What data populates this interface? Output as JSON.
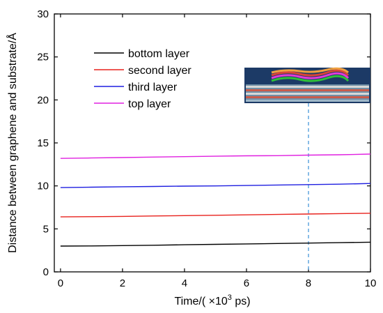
{
  "chart_data": {
    "type": "line",
    "xlabel": {
      "prefix": "Time/( ×10",
      "sup": "3",
      "suffix": " ps)"
    },
    "ylabel": "Distance between graphene and substrate/Å",
    "xlim": [
      -0.2,
      10
    ],
    "ylim": [
      0,
      30
    ],
    "xticks": [
      0,
      2,
      4,
      6,
      8,
      10
    ],
    "yticks": [
      0,
      5,
      10,
      15,
      20,
      25,
      30
    ],
    "legend_position": "top-left",
    "grid": false,
    "series": [
      {
        "name": "bottom layer",
        "color": "#000000",
        "x": [
          0,
          1,
          2,
          3,
          4,
          5,
          6,
          7,
          8,
          9,
          10
        ],
        "y": [
          3.0,
          3.02,
          3.06,
          3.1,
          3.15,
          3.2,
          3.25,
          3.3,
          3.35,
          3.4,
          3.45
        ]
      },
      {
        "name": "second layer",
        "color": "#e8211c",
        "x": [
          0,
          1,
          2,
          3,
          4,
          5,
          6,
          7,
          8,
          9,
          10
        ],
        "y": [
          6.4,
          6.42,
          6.45,
          6.5,
          6.54,
          6.58,
          6.63,
          6.68,
          6.73,
          6.78,
          6.82
        ]
      },
      {
        "name": "third layer",
        "color": "#1f1fe0",
        "x": [
          0,
          1,
          2,
          3,
          4,
          5,
          6,
          7,
          8,
          9,
          10
        ],
        "y": [
          9.8,
          9.85,
          9.9,
          9.93,
          9.97,
          10.0,
          10.05,
          10.1,
          10.15,
          10.2,
          10.28
        ]
      },
      {
        "name": "top layer",
        "color": "#e020e0",
        "x": [
          0,
          1,
          2,
          3,
          4,
          5,
          6,
          7,
          8,
          9,
          10
        ],
        "y": [
          13.2,
          13.25,
          13.3,
          13.35,
          13.4,
          13.45,
          13.5,
          13.52,
          13.58,
          13.62,
          13.7
        ]
      }
    ],
    "annotation": {
      "x": 8,
      "color": "#3a8fd6",
      "style": "dashed"
    }
  }
}
